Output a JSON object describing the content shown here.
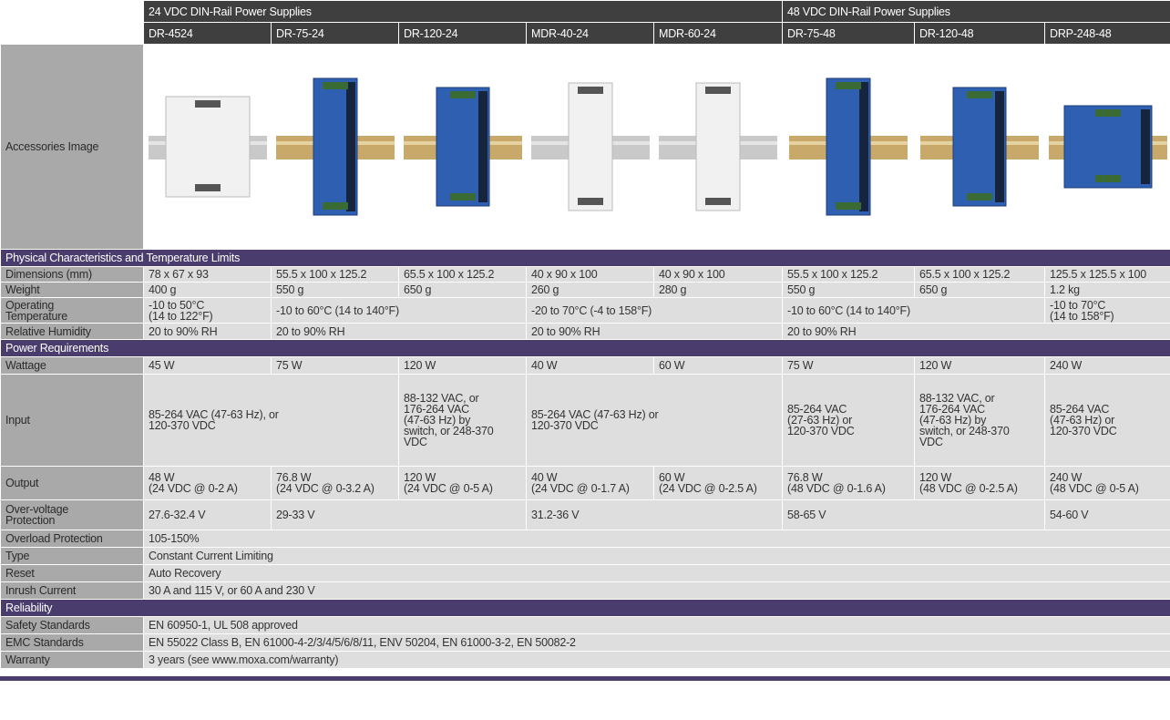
{
  "header": {
    "group_24": "24 VDC DIN-Rail Power Supplies",
    "group_48": "48 VDC DIN-Rail Power Supplies",
    "models": [
      "DR-4524",
      "DR-75-24",
      "DR-120-24",
      "MDR-40-24",
      "MDR-60-24",
      "DR-75-48",
      "DR-120-48",
      "DRP-248-48"
    ]
  },
  "image_row_label": "Accessories Image",
  "sections": [
    {
      "title": "Physical Characteristics and Temperature Limits",
      "rows": [
        {
          "label": "Dimensions (mm)",
          "cells": [
            "78 x 67 x 93",
            "55.5 x 100 x 125.2",
            "65.5 x 100 x 125.2",
            "40 x 90 x 100",
            "40 x 90 x 100",
            "55.5 x 100 x 125.2",
            "65.5 x 100 x 125.2",
            "125.5 x 125.5 x 100"
          ]
        },
        {
          "label": "Weight",
          "cells": [
            "400 g",
            "550 g",
            "650 g",
            "260 g",
            "280 g",
            "550 g",
            "650 g",
            "1.2 kg"
          ]
        },
        {
          "label": "Operating\nTemperature",
          "cells": [
            "-10 to 50°C\n(14 to 122°F)",
            "-10 to 60°C (14 to 140°F)",
            "-20 to 70°C (-4 to 158°F)",
            "-10 to 60°C (14 to 140°F)",
            "-10 to 70°C\n(14 to 158°F)"
          ]
        },
        {
          "label": "Relative Humidity",
          "cells": [
            "20 to 90% RH",
            "20 to 90% RH",
            "20 to 90% RH",
            "20 to 90% RH"
          ]
        }
      ]
    },
    {
      "title": "Power Requirements",
      "rows": [
        {
          "label": "Wattage",
          "cells": [
            "45 W",
            "75 W",
            "120 W",
            "40 W",
            "60 W",
            "75 W",
            "120 W",
            "240 W"
          ]
        },
        {
          "label": "Input",
          "cells": [
            "85-264 VAC (47-63 Hz), or\n120-370 VDC",
            "88-132 VAC, or\n176-264 VAC\n(47-63 Hz) by\nswitch, or 248-370\nVDC",
            "85-264 VAC (47-63 Hz) or\n120-370 VDC",
            "85-264 VAC\n(27-63 Hz) or\n120-370 VDC",
            "88-132 VAC, or\n176-264 VAC\n(47-63 Hz) by\nswitch, or 248-370\nVDC",
            "85-264 VAC\n(47-63 Hz) or\n120-370 VDC"
          ]
        },
        {
          "label": "Output",
          "cells": [
            "48 W\n(24 VDC @ 0-2 A)",
            "76.8 W\n(24 VDC @ 0-3.2 A)",
            "120 W\n(24 VDC @ 0-5 A)",
            "40 W\n(24 VDC @ 0-1.7 A)",
            "60 W\n(24 VDC @ 0-2.5 A)",
            "76.8 W\n(48 VDC @ 0-1.6 A)",
            "120 W\n(48 VDC @ 0-2.5 A)",
            "240 W\n(48 VDC @ 0-5 A)"
          ]
        },
        {
          "label": "Over-voltage\nProtection",
          "cells": [
            "27.6-32.4 V",
            "29-33 V",
            "31.2-36 V",
            "58-65 V",
            "54-60 V"
          ]
        },
        {
          "label": "Overload Protection",
          "cells": [
            "105-150%"
          ]
        },
        {
          "label": "Type",
          "cells": [
            "Constant Current Limiting"
          ]
        },
        {
          "label": "Reset",
          "cells": [
            "Auto Recovery"
          ]
        },
        {
          "label": "Inrush Current",
          "cells": [
            "30 A and 115 V, or 60 A and 230 V"
          ]
        }
      ]
    },
    {
      "title": "Reliability",
      "rows": [
        {
          "label": "Safety Standards",
          "cells": [
            "EN 60950-1, UL 508 approved"
          ]
        },
        {
          "label": "EMC Standards",
          "cells": [
            "EN 55022 Class B, EN 61000-4-2/3/4/5/6/8/11, ENV 50204, EN 61000-3-2, EN 50082-2"
          ]
        },
        {
          "label": "Warranty",
          "cells": [
            "3 years (see www.moxa.com/warranty)"
          ]
        }
      ]
    }
  ]
}
